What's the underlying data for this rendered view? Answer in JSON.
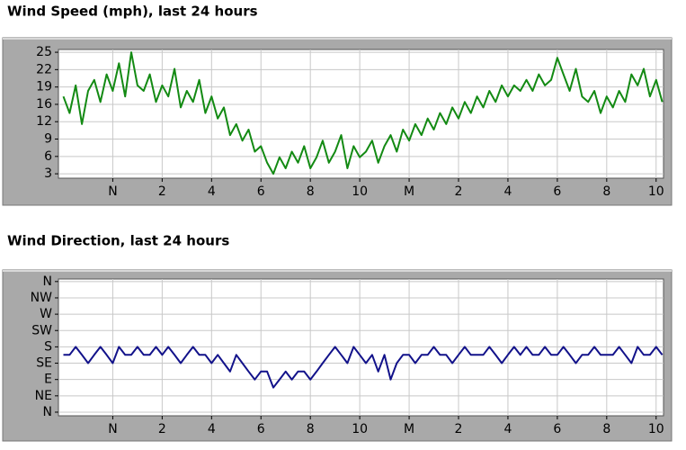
{
  "chart_data": [
    {
      "type": "line",
      "title": "Wind Speed (mph), last 24 hours",
      "color": "#138a13",
      "grid": true,
      "xlim": [
        9.8,
        34.3
      ],
      "ylim": [
        2.2,
        25.5
      ],
      "xticks": [
        {
          "value": 12,
          "label": "N"
        },
        {
          "value": 14,
          "label": "2"
        },
        {
          "value": 16,
          "label": "4"
        },
        {
          "value": 18,
          "label": "6"
        },
        {
          "value": 20,
          "label": "8"
        },
        {
          "value": 22,
          "label": "10"
        },
        {
          "value": 24,
          "label": "M"
        },
        {
          "value": 26,
          "label": "2"
        },
        {
          "value": 28,
          "label": "4"
        },
        {
          "value": 30,
          "label": "6"
        },
        {
          "value": 32,
          "label": "8"
        },
        {
          "value": 34,
          "label": "10"
        }
      ],
      "yticks": [
        3,
        {
          "value": 6.14,
          "label": "6"
        },
        {
          "value": 9.29,
          "label": "9"
        },
        {
          "value": 12.43,
          "label": "12"
        },
        {
          "value": 15.57,
          "label": "16"
        },
        {
          "value": 18.71,
          "label": "19"
        },
        {
          "value": 21.86,
          "label": "22"
        },
        25
      ],
      "x": [
        10,
        10.25,
        10.5,
        10.75,
        11,
        11.25,
        11.5,
        11.75,
        12,
        12.25,
        12.5,
        12.75,
        13,
        13.25,
        13.5,
        13.75,
        14,
        14.25,
        14.5,
        14.75,
        15,
        15.25,
        15.5,
        15.75,
        16,
        16.25,
        16.5,
        16.75,
        17,
        17.25,
        17.5,
        17.75,
        18,
        18.25,
        18.5,
        18.75,
        19,
        19.25,
        19.5,
        19.75,
        20,
        20.25,
        20.5,
        20.75,
        21,
        21.25,
        21.5,
        21.75,
        22,
        22.25,
        22.5,
        22.75,
        23,
        23.25,
        23.5,
        23.75,
        24,
        24.25,
        24.5,
        24.75,
        25,
        25.25,
        25.5,
        25.75,
        26,
        26.25,
        26.5,
        26.75,
        27,
        27.25,
        27.5,
        27.75,
        28,
        28.25,
        28.5,
        28.75,
        29,
        29.25,
        29.5,
        29.75,
        30,
        30.25,
        30.5,
        30.75,
        31,
        31.25,
        31.5,
        31.75,
        32,
        32.25,
        32.5,
        32.75,
        33,
        33.25,
        33.5,
        33.75,
        34,
        34.25
      ],
      "values": [
        17,
        14,
        19,
        12,
        18,
        20,
        16,
        21,
        18,
        23,
        17,
        25,
        19,
        18,
        21,
        16,
        19,
        17,
        22,
        15,
        18,
        16,
        20,
        14,
        17,
        13,
        15,
        10,
        12,
        9,
        11,
        7,
        8,
        5,
        3,
        6,
        4,
        7,
        5,
        8,
        4,
        6,
        9,
        5,
        7,
        10,
        4,
        8,
        6,
        7,
        9,
        5,
        8,
        10,
        7,
        11,
        9,
        12,
        10,
        13,
        11,
        14,
        12,
        15,
        13,
        16,
        14,
        17,
        15,
        18,
        16,
        19,
        17,
        19,
        18,
        20,
        18,
        21,
        19,
        20,
        24,
        21,
        18,
        22,
        17,
        16,
        18,
        14,
        17,
        15,
        18,
        16,
        21,
        19,
        22,
        17,
        20,
        16
      ]
    },
    {
      "type": "line",
      "title": "Wind Direction, last 24 hours",
      "color": "#12128a",
      "grid": true,
      "xlim": [
        9.8,
        34.3
      ],
      "ylim": [
        -10,
        367
      ],
      "xticks": [
        {
          "value": 12,
          "label": "N"
        },
        {
          "value": 14,
          "label": "2"
        },
        {
          "value": 16,
          "label": "4"
        },
        {
          "value": 18,
          "label": "6"
        },
        {
          "value": 20,
          "label": "8"
        },
        {
          "value": 22,
          "label": "10"
        },
        {
          "value": 24,
          "label": "M"
        },
        {
          "value": 26,
          "label": "2"
        },
        {
          "value": 28,
          "label": "4"
        },
        {
          "value": 30,
          "label": "6"
        },
        {
          "value": 32,
          "label": "8"
        },
        {
          "value": 34,
          "label": "10"
        }
      ],
      "yticks": [
        {
          "value": 0,
          "label": "N"
        },
        {
          "value": 45,
          "label": "NE"
        },
        {
          "value": 90,
          "label": "E"
        },
        {
          "value": 135,
          "label": "SE"
        },
        {
          "value": 180,
          "label": "S"
        },
        {
          "value": 225,
          "label": "SW"
        },
        {
          "value": 270,
          "label": "W"
        },
        {
          "value": 315,
          "label": "NW"
        },
        {
          "value": 360,
          "label": "N"
        }
      ],
      "x": [
        10,
        10.25,
        10.5,
        10.75,
        11,
        11.25,
        11.5,
        11.75,
        12,
        12.25,
        12.5,
        12.75,
        13,
        13.25,
        13.5,
        13.75,
        14,
        14.25,
        14.5,
        14.75,
        15,
        15.25,
        15.5,
        15.75,
        16,
        16.25,
        16.5,
        16.75,
        17,
        17.25,
        17.5,
        17.75,
        18,
        18.25,
        18.5,
        18.75,
        19,
        19.25,
        19.5,
        19.75,
        20,
        20.25,
        20.5,
        20.75,
        21,
        21.25,
        21.5,
        21.75,
        22,
        22.25,
        22.5,
        22.75,
        23,
        23.25,
        23.5,
        23.75,
        24,
        24.25,
        24.5,
        24.75,
        25,
        25.25,
        25.5,
        25.75,
        26,
        26.25,
        26.5,
        26.75,
        27,
        27.25,
        27.5,
        27.75,
        28,
        28.25,
        28.5,
        28.75,
        29,
        29.25,
        29.5,
        29.75,
        30,
        30.25,
        30.5,
        30.75,
        31,
        31.25,
        31.5,
        31.75,
        32,
        32.25,
        32.5,
        32.75,
        33,
        33.25,
        33.5,
        33.75,
        34,
        34.25
      ],
      "values": [
        158,
        158,
        180,
        158,
        135,
        158,
        180,
        158,
        135,
        180,
        158,
        158,
        180,
        158,
        158,
        180,
        158,
        180,
        158,
        135,
        158,
        180,
        158,
        158,
        135,
        158,
        135,
        112,
        158,
        135,
        112,
        90,
        112,
        112,
        68,
        90,
        112,
        90,
        112,
        112,
        90,
        112,
        135,
        158,
        180,
        158,
        135,
        180,
        158,
        135,
        158,
        112,
        158,
        90,
        135,
        158,
        158,
        135,
        158,
        158,
        180,
        158,
        158,
        135,
        158,
        180,
        158,
        158,
        158,
        180,
        158,
        135,
        158,
        180,
        158,
        180,
        158,
        158,
        180,
        158,
        158,
        180,
        158,
        135,
        158,
        158,
        180,
        158,
        158,
        158,
        180,
        158,
        135,
        180,
        158,
        158,
        180,
        158
      ]
    }
  ]
}
